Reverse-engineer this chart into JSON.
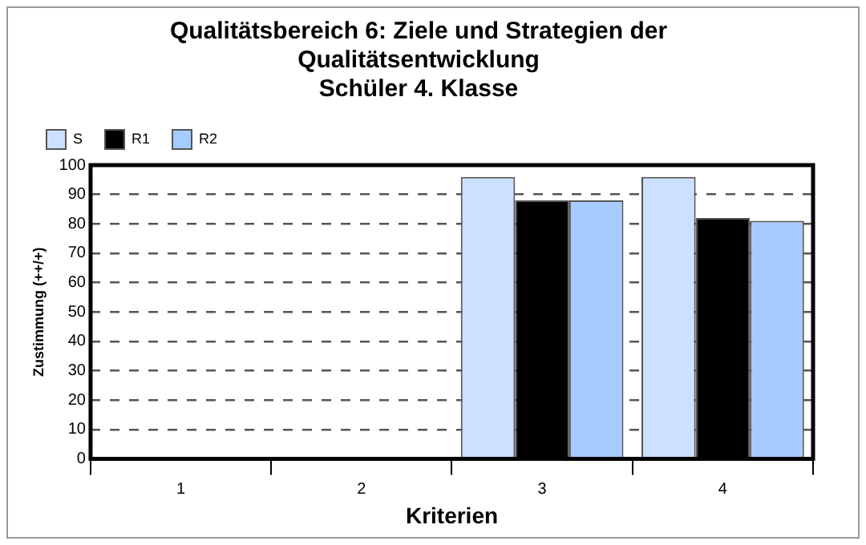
{
  "chart_data": {
    "type": "bar",
    "title": "Qualitätsbereich 6: Ziele und Strategien der Qualitätsentwicklung",
    "subtitle": "Schüler 4. Klasse",
    "xlabel": "Kriterien",
    "ylabel": "Zustimmung (++/+)",
    "categories": [
      "1",
      "2",
      "3",
      "4"
    ],
    "series": [
      {
        "name": "S",
        "color": "#cce0ff",
        "values": [
          null,
          null,
          96,
          96
        ]
      },
      {
        "name": "R1",
        "color": "#000000",
        "values": [
          null,
          null,
          88,
          82
        ]
      },
      {
        "name": "R2",
        "color": "#a6ccff",
        "values": [
          null,
          null,
          88,
          81
        ]
      }
    ],
    "ylim": [
      0,
      100
    ],
    "yticks": [
      0,
      10,
      20,
      30,
      40,
      50,
      60,
      70,
      80,
      90,
      100
    ],
    "grid": "y",
    "legend": "top left",
    "line_style": "dashed"
  }
}
